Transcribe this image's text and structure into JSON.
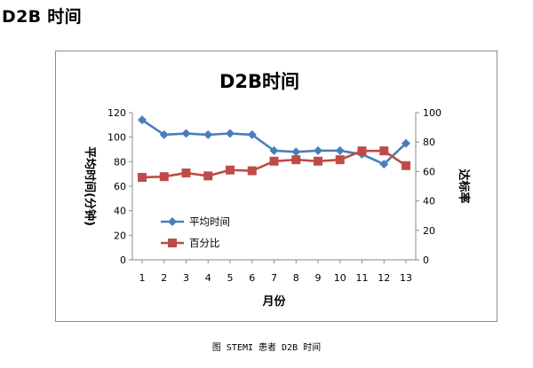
{
  "page": {
    "heading": "D2B 时间",
    "caption": "图 STEMI 患者 D2B 时间"
  },
  "chart_data": {
    "type": "line",
    "title": "D2B时间",
    "xlabel": "月份",
    "ylabel_left": "平均时间(分钟)",
    "ylabel_right": "达标率",
    "categories": [
      "1",
      "2",
      "3",
      "4",
      "5",
      "6",
      "7",
      "8",
      "9",
      "10",
      "11",
      "12",
      "13"
    ],
    "y_left": {
      "min": 0,
      "max": 120,
      "ticks": [
        0,
        20,
        40,
        60,
        80,
        100,
        120
      ]
    },
    "y_right": {
      "min": 0,
      "max": 100,
      "ticks": [
        0,
        20,
        40,
        60,
        80,
        100
      ]
    },
    "grid": false,
    "legend_position": "lower-left",
    "series": [
      {
        "name": "平均时间",
        "axis": "left",
        "marker": "diamond",
        "color": "#4a7ebb",
        "values": [
          114,
          102,
          103,
          102,
          103,
          102,
          89,
          88,
          89,
          89,
          86,
          78,
          95
        ]
      },
      {
        "name": "百分比",
        "axis": "right",
        "marker": "square",
        "color": "#be4b48",
        "values": [
          56,
          56.5,
          59,
          57,
          61,
          60.5,
          67,
          68,
          67,
          68,
          74,
          74,
          64
        ]
      }
    ]
  }
}
